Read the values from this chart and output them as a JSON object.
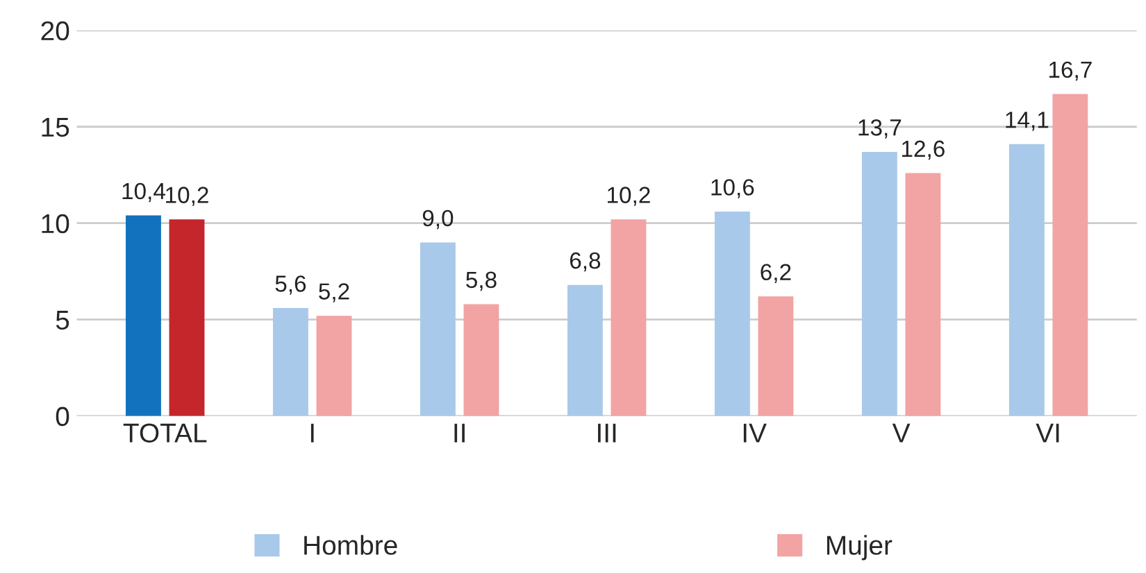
{
  "chart_data": {
    "type": "bar",
    "categories": [
      "TOTAL",
      "I",
      "II",
      "III",
      "IV",
      "V",
      "VI"
    ],
    "series": [
      {
        "name": "Hombre",
        "color": "#a9c9ea",
        "colors": [
          "#1272bd",
          "#a9c9ea",
          "#a9c9ea",
          "#a9c9ea",
          "#a9c9ea",
          "#a9c9ea",
          "#a9c9ea"
        ],
        "values": [
          10.4,
          5.6,
          9.0,
          6.8,
          10.6,
          13.7,
          14.1
        ],
        "value_labels": [
          "10,4",
          "5,6",
          "9,0",
          "6,8",
          "10,6",
          "13,7",
          "14,1"
        ]
      },
      {
        "name": "Mujer",
        "color": "#f2a3a3",
        "colors": [
          "#c4262c",
          "#f2a3a3",
          "#f2a3a3",
          "#f2a3a3",
          "#f2a3a3",
          "#f2a3a3",
          "#f2a3a3"
        ],
        "values": [
          10.2,
          5.2,
          5.8,
          10.2,
          6.2,
          12.6,
          16.7
        ],
        "value_labels": [
          "10,2",
          "5,2",
          "5,8",
          "10,2",
          "6,2",
          "12,6",
          "16,7"
        ]
      }
    ],
    "ylim": [
      0,
      20
    ],
    "yticks": [
      0,
      5,
      10,
      15,
      20
    ],
    "grid": "y",
    "legend": "bottom"
  }
}
